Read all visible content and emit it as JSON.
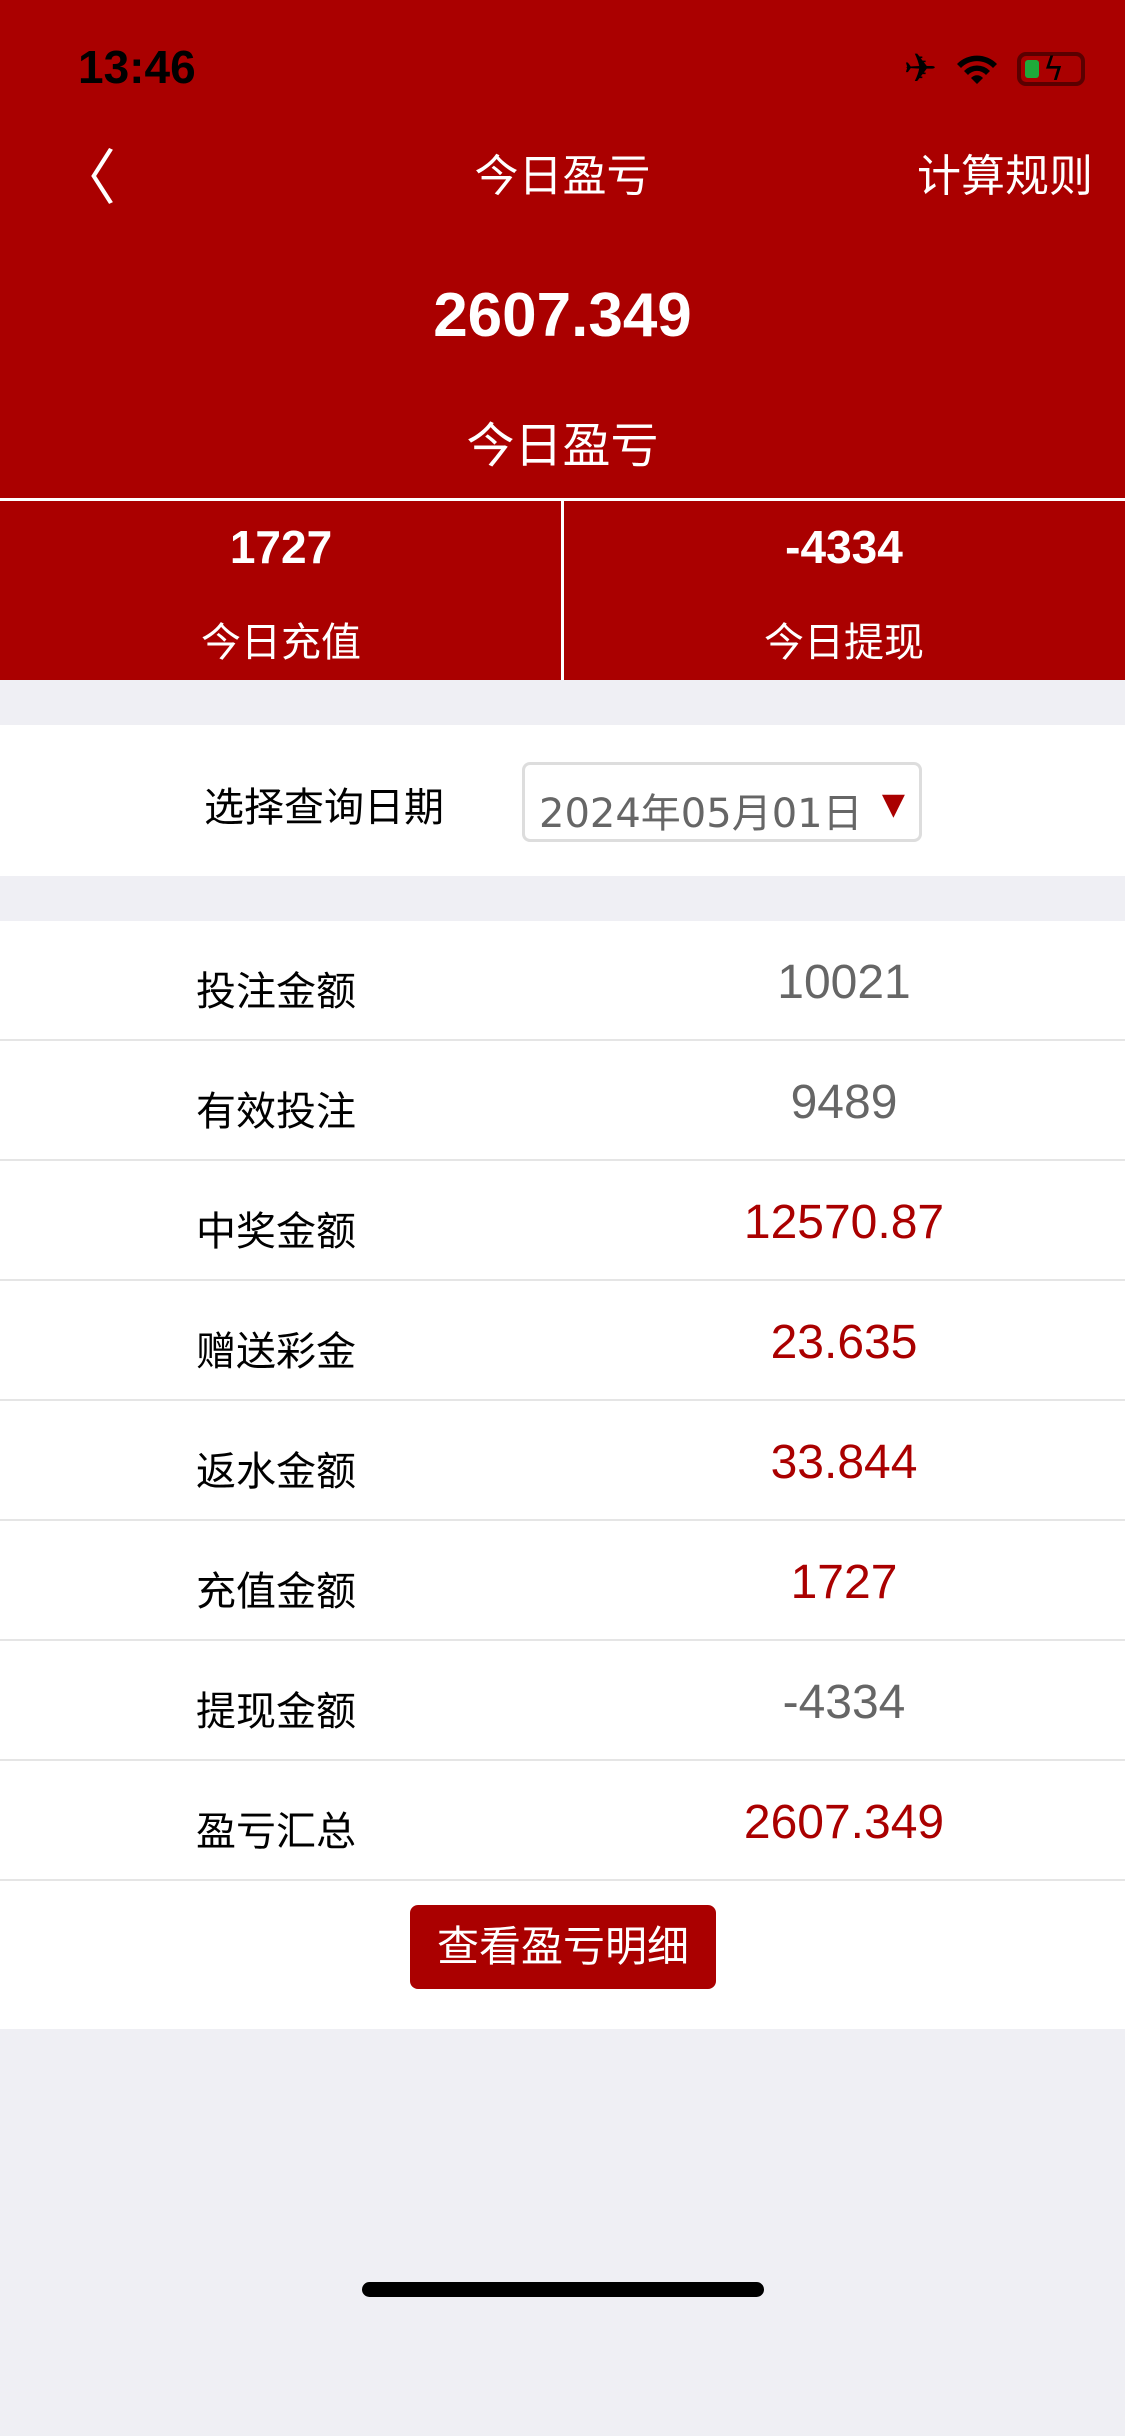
{
  "status_bar": {
    "time": "13:46",
    "icons": [
      "airplane-icon",
      "wifi-icon",
      "battery-charging-icon"
    ]
  },
  "nav": {
    "back_icon": "chevron-left-icon",
    "title": "今日盈亏",
    "right_label": "计算规则"
  },
  "summary": {
    "value": "2607.349",
    "label": "今日盈亏"
  },
  "stats": [
    {
      "value": "1727",
      "label": "今日充值"
    },
    {
      "value": "-4334",
      "label": "今日提现"
    }
  ],
  "date_filter": {
    "label": "选择查询日期",
    "value": "2024年05月01日"
  },
  "rows": [
    {
      "label": "投注金额",
      "value": "10021",
      "color": "#666666"
    },
    {
      "label": "有效投注",
      "value": "9489",
      "color": "#666666"
    },
    {
      "label": "中奖金额",
      "value": "12570.87",
      "color": "#aa0000"
    },
    {
      "label": "赠送彩金",
      "value": "23.635",
      "color": "#aa0000"
    },
    {
      "label": "返水金额",
      "value": "33.844",
      "color": "#aa0000"
    },
    {
      "label": "充值金额",
      "value": "1727",
      "color": "#aa0000"
    },
    {
      "label": "提现金额",
      "value": "-4334",
      "color": "#666666"
    },
    {
      "label": "盈亏汇总",
      "value": "2607.349",
      "color": "#aa0000"
    }
  ],
  "detail_button": "查看盈亏明细",
  "colors": {
    "brand": "#aa0000",
    "background": "#efeff4"
  }
}
